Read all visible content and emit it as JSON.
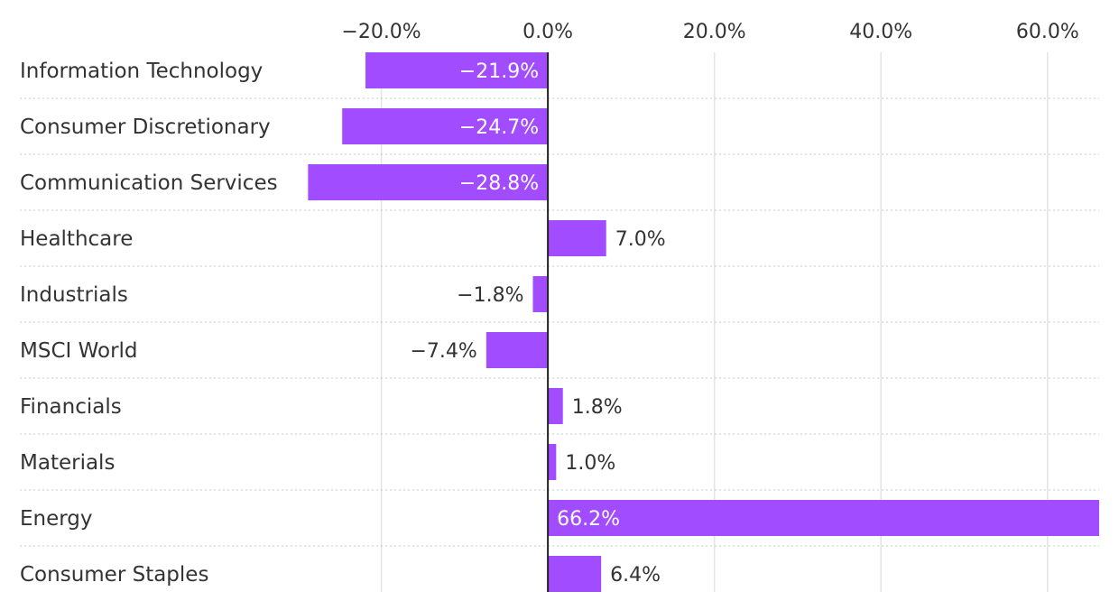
{
  "chart_data": {
    "type": "bar",
    "orientation": "horizontal",
    "categories": [
      "Information Technology",
      "Consumer Discretionary",
      "Communication Services",
      "Healthcare",
      "Industrials",
      "MSCI World",
      "Financials",
      "Materials",
      "Energy",
      "Consumer Staples"
    ],
    "values": [
      -21.9,
      -24.7,
      -28.8,
      7.0,
      -1.8,
      -7.4,
      1.8,
      1.0,
      66.2,
      6.4
    ],
    "value_labels": [
      "−21.9%",
      "−24.7%",
      "−28.8%",
      "7.0%",
      "−1.8%",
      "−7.4%",
      "1.8%",
      "1.0%",
      "66.2%",
      "6.4%"
    ],
    "xlim": [
      -40,
      66.2
    ],
    "x_ticks": [
      -20,
      0,
      20,
      40,
      60
    ],
    "x_tick_labels": [
      "−20.0%",
      "0.0%",
      "20.0%",
      "40.0%",
      "60.0%"
    ],
    "x_axis_position": "top",
    "title": "",
    "xlabel": "",
    "ylabel": "",
    "grid": true,
    "bar_color": "#a24cff"
  }
}
